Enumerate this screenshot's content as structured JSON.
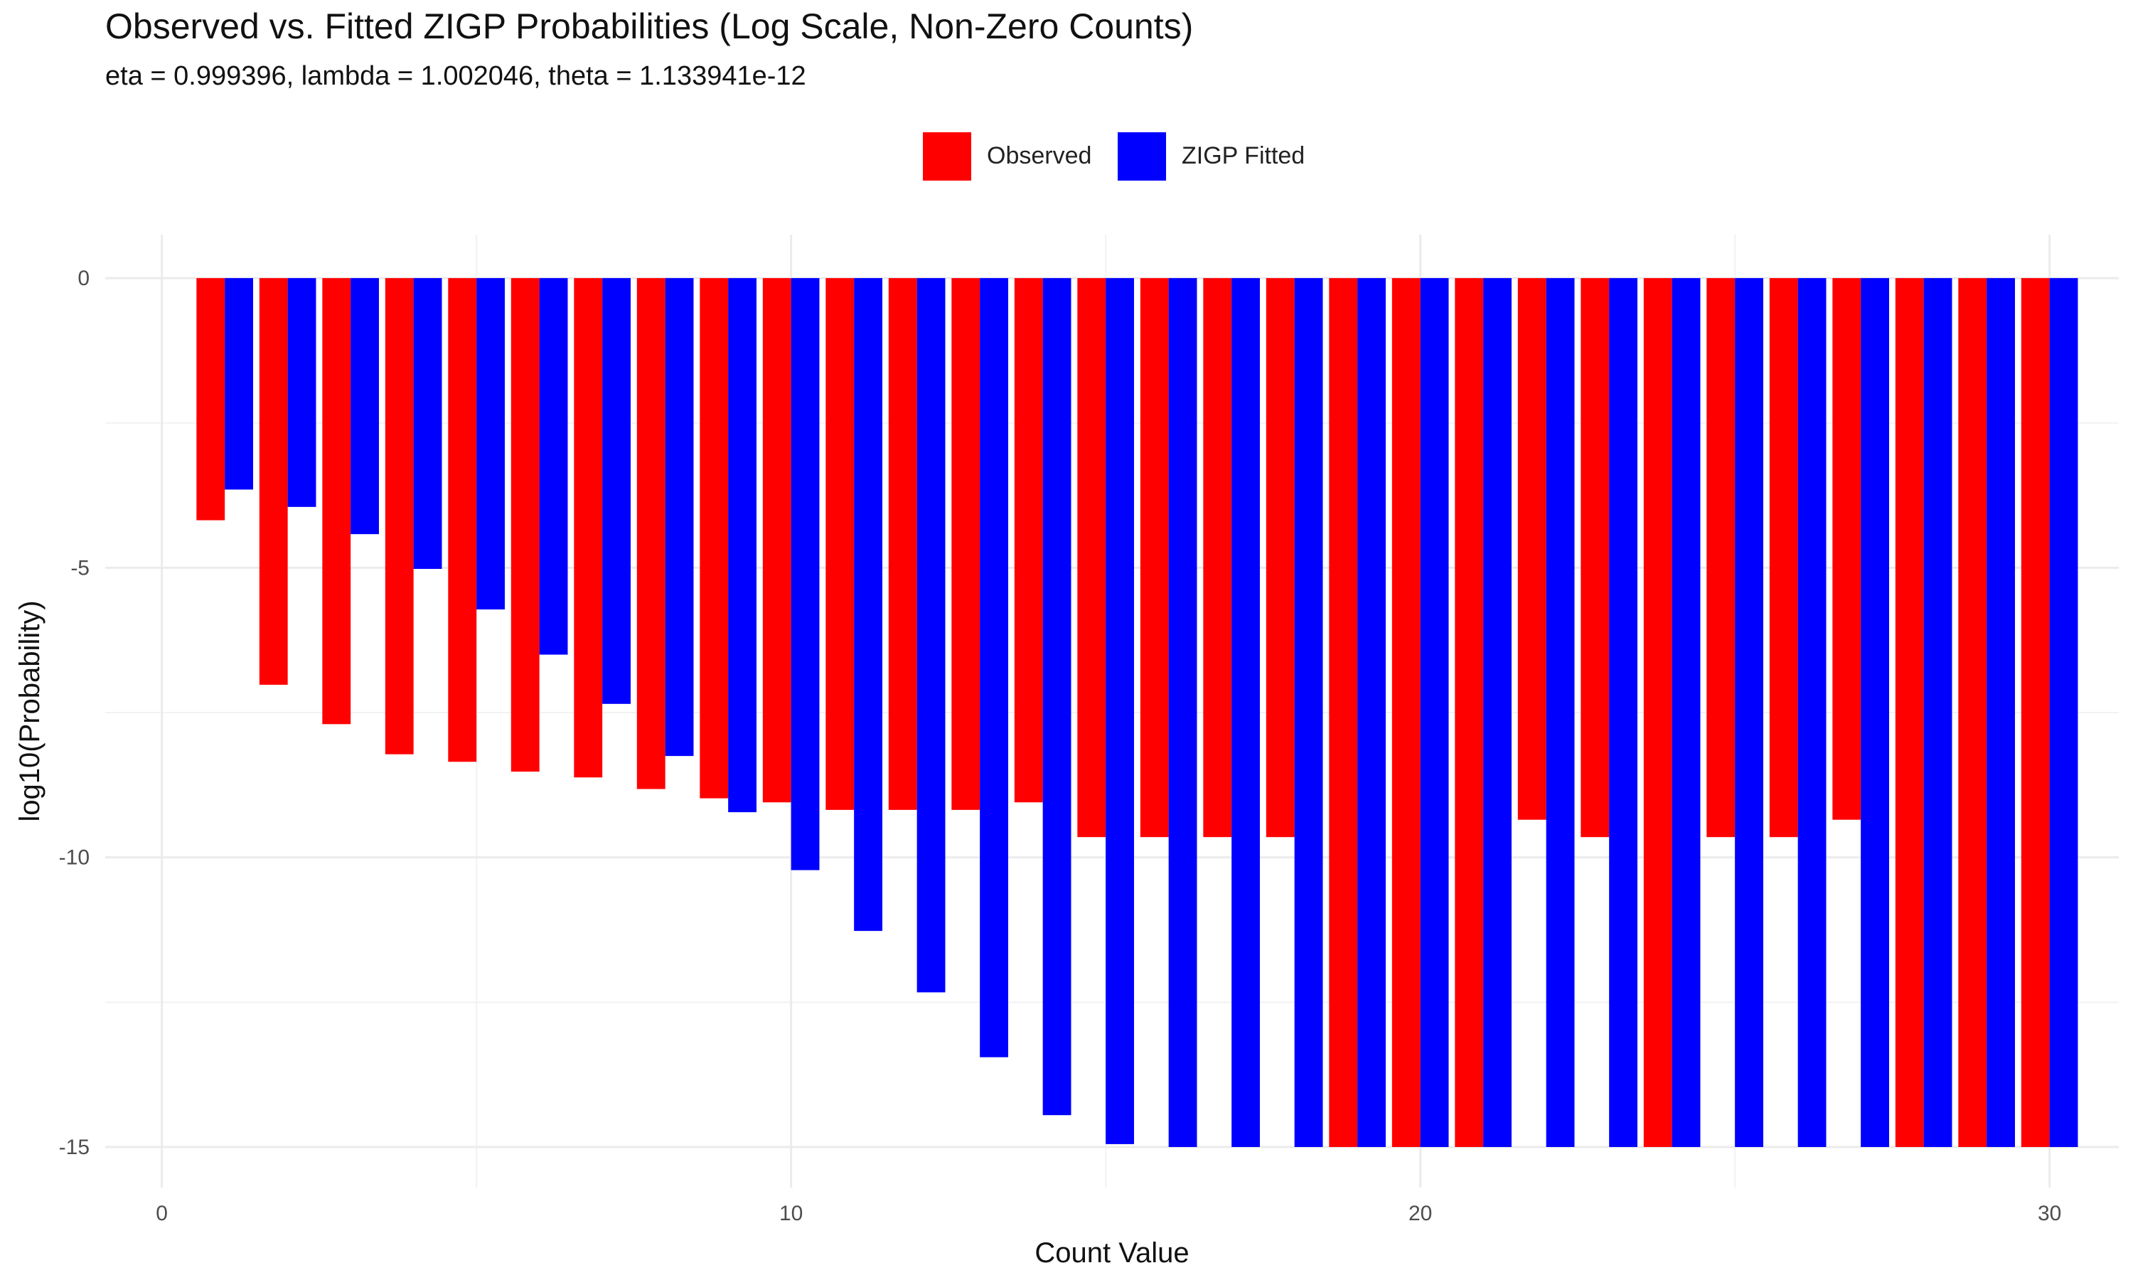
{
  "chart_data": {
    "type": "bar",
    "title": "Observed vs. Fitted ZIGP Probabilities (Log Scale, Non-Zero Counts)",
    "subtitle": "eta = 0.999396, lambda = 1.002046, theta = 1.133941e-12",
    "xlabel": "Count Value",
    "ylabel": "log10(Probability)",
    "xlim": [
      -0.9,
      31.1
    ],
    "ylim": [
      -15.7,
      0.75
    ],
    "x_ticks": [
      0,
      10,
      20,
      30
    ],
    "y_ticks": [
      0,
      -5,
      -10,
      -15
    ],
    "grid": true,
    "legend_position": "top",
    "x": [
      1,
      2,
      3,
      4,
      5,
      6,
      7,
      8,
      9,
      10,
      11,
      12,
      13,
      14,
      15,
      16,
      17,
      18,
      19,
      20,
      21,
      22,
      23,
      24,
      25,
      26,
      27,
      28,
      29,
      30
    ],
    "series": [
      {
        "name": "Observed",
        "color": "#ff0000",
        "values": [
          -4.18,
          -7.02,
          -7.7,
          -8.22,
          -8.35,
          -8.52,
          -8.62,
          -8.82,
          -8.98,
          -9.05,
          -9.18,
          -9.18,
          -9.18,
          -9.05,
          -9.65,
          -9.65,
          -9.65,
          -9.65,
          -15,
          -15,
          -15,
          -9.35,
          -9.65,
          -15,
          -9.65,
          -9.65,
          -9.35,
          -15,
          -15,
          -15
        ]
      },
      {
        "name": "ZIGP Fitted",
        "color": "#0000ff",
        "values": [
          -3.65,
          -3.95,
          -4.42,
          -5.02,
          -5.72,
          -6.5,
          -7.35,
          -8.25,
          -9.22,
          -10.22,
          -11.27,
          -12.33,
          -13.45,
          -14.45,
          -14.95,
          -15,
          -15,
          -15,
          -15,
          -15,
          -15,
          -15,
          -15,
          -15,
          -15,
          -15,
          -15,
          -15,
          -15,
          -15
        ]
      }
    ]
  }
}
